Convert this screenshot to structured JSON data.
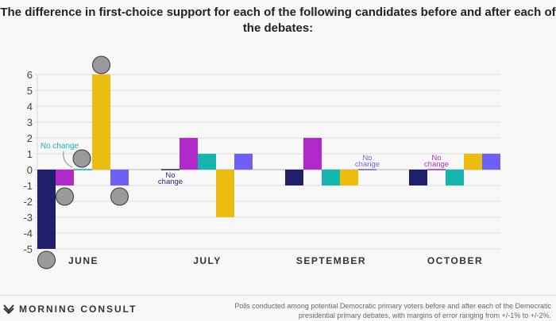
{
  "chart_data": {
    "type": "bar",
    "title": "The difference in first-choice support for each of the following candidates before and after each of the debates:",
    "categories": [
      "JUNE",
      "JULY",
      "SEPTEMBER",
      "OCTOBER"
    ],
    "ylim": [
      -5,
      6
    ],
    "yticks": [
      6,
      5,
      4,
      3,
      2,
      1,
      0,
      -1,
      -2,
      -3,
      -4,
      -5
    ],
    "grid": true,
    "series": [
      {
        "key": "biden",
        "color": "#1f1f6b",
        "values": [
          -5,
          0,
          -1,
          -1
        ]
      },
      {
        "key": "warren",
        "color": "#b02ac9",
        "values": [
          -1,
          2,
          2,
          0
        ]
      },
      {
        "key": "sanders",
        "color": "#17b5b0",
        "values": [
          0,
          1,
          -1,
          -1
        ]
      },
      {
        "key": "harris",
        "color": "#ebbd10",
        "values": [
          6,
          -3,
          -1,
          1
        ]
      },
      {
        "key": "buttigieg",
        "color": "#6e5ff5",
        "values": [
          -1,
          1,
          0,
          1
        ]
      }
    ],
    "annotations": [
      {
        "text": "No change",
        "category": "JUNE",
        "series": "sanders"
      },
      {
        "text": "No change",
        "category": "JULY",
        "series": "biden"
      },
      {
        "text": "No change",
        "category": "SEPTEMBER",
        "series": "buttigieg"
      },
      {
        "text": "No change",
        "category": "OCTOBER",
        "series": "warren"
      }
    ]
  },
  "footer": {
    "brand": "MORNING CONSULT",
    "note": "Polls conducted among potential Democratic primary voters before and after each of the Democratic presidential primary debates, with margins of error ranging from +/-1% to +/-2%."
  }
}
